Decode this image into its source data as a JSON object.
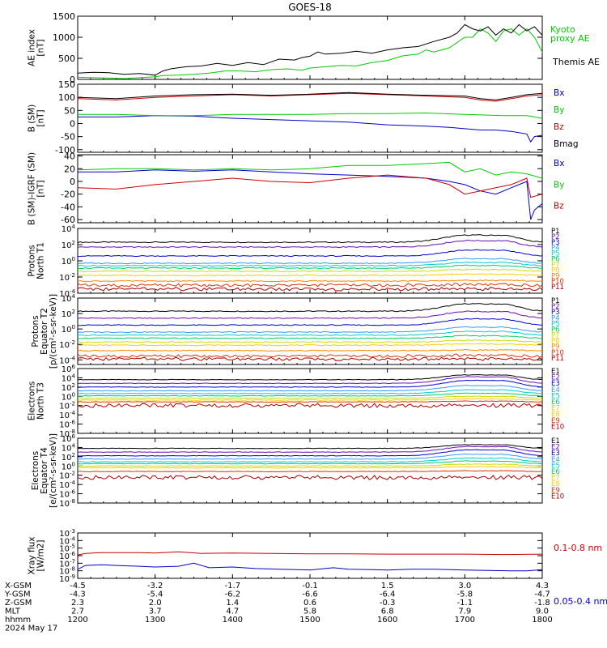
{
  "title": "GOES-18",
  "chart_data": [
    {
      "id": "ae",
      "type": "line",
      "ylabel": [
        "AE index",
        "[nT]"
      ],
      "yscale": "linear",
      "ylim": [
        0,
        1500
      ],
      "yticks": [
        0,
        500,
        1000,
        1500
      ],
      "series": [
        {
          "name": "Kyoto proxy AE",
          "label_lines": [
            "Kyoto",
            "proxy AE"
          ],
          "color": "#00cc00",
          "x": [
            12.0,
            12.2,
            12.4,
            12.6,
            12.8,
            13.0,
            13.1,
            13.3,
            13.5,
            13.7,
            13.9,
            14.1,
            14.3,
            14.5,
            14.7,
            14.9,
            15.0,
            15.2,
            15.4,
            15.6,
            15.8,
            16.0,
            16.2,
            16.4,
            16.5,
            16.6,
            16.8,
            17.0,
            17.1,
            17.2,
            17.3,
            17.4,
            17.5,
            17.6,
            17.7,
            17.8,
            17.9,
            18.0
          ],
          "y": [
            50,
            40,
            30,
            20,
            40,
            60,
            90,
            100,
            120,
            150,
            200,
            200,
            180,
            230,
            250,
            220,
            270,
            300,
            330,
            320,
            400,
            450,
            560,
            600,
            700,
            650,
            750,
            1000,
            1000,
            1200,
            1100,
            900,
            1150,
            1200,
            1050,
            1200,
            1000,
            650
          ]
        },
        {
          "name": "Themis AE",
          "color": "#000000",
          "x": [
            12.0,
            12.2,
            12.4,
            12.6,
            12.8,
            13.0,
            13.1,
            13.2,
            13.4,
            13.6,
            13.8,
            14.0,
            14.2,
            14.4,
            14.6,
            14.8,
            14.9,
            15.0,
            15.1,
            15.2,
            15.4,
            15.6,
            15.8,
            16.0,
            16.2,
            16.4,
            16.6,
            16.8,
            16.9,
            17.0,
            17.1,
            17.2,
            17.3,
            17.4,
            17.5,
            17.6,
            17.7,
            17.8,
            17.9,
            18.0
          ],
          "y": [
            150,
            170,
            160,
            120,
            140,
            100,
            200,
            250,
            300,
            320,
            380,
            330,
            400,
            350,
            480,
            460,
            520,
            550,
            650,
            600,
            620,
            670,
            620,
            700,
            750,
            780,
            900,
            1000,
            1100,
            1300,
            1200,
            1150,
            1250,
            1050,
            1200,
            1100,
            1300,
            1150,
            1250,
            1050
          ]
        }
      ]
    },
    {
      "id": "bsm",
      "type": "line",
      "ylabel": [
        "B (SM)",
        "[nT]"
      ],
      "yscale": "linear",
      "ylim": [
        -110,
        150
      ],
      "yticks": [
        -100,
        -50,
        0,
        50,
        100,
        150
      ],
      "series": [
        {
          "name": "Bx",
          "color": "#0000cc",
          "x": [
            12.0,
            12.5,
            13.0,
            13.5,
            14.0,
            14.5,
            15.0,
            15.5,
            16.0,
            16.5,
            16.8,
            17.0,
            17.2,
            17.4,
            17.6,
            17.8,
            17.85,
            17.9,
            18.0
          ],
          "y": [
            25,
            25,
            30,
            28,
            20,
            15,
            10,
            5,
            -5,
            -10,
            -15,
            -20,
            -25,
            -25,
            -30,
            -40,
            -70,
            -50,
            -45
          ]
        },
        {
          "name": "By",
          "color": "#00cc00",
          "x": [
            12.0,
            12.5,
            13.0,
            13.5,
            14.0,
            14.5,
            15.0,
            15.5,
            16.0,
            16.5,
            17.0,
            17.5,
            17.8,
            18.0
          ],
          "y": [
            35,
            35,
            30,
            30,
            35,
            35,
            35,
            38,
            38,
            40,
            35,
            30,
            30,
            20
          ]
        },
        {
          "name": "Bz",
          "color": "#cc0000",
          "x": [
            12.0,
            12.5,
            13.0,
            13.5,
            14.0,
            14.5,
            15.0,
            15.5,
            16.0,
            16.5,
            17.0,
            17.2,
            17.4,
            17.6,
            17.8,
            18.0
          ],
          "y": [
            95,
            90,
            100,
            105,
            110,
            105,
            110,
            115,
            110,
            105,
            100,
            90,
            85,
            95,
            105,
            110
          ]
        },
        {
          "name": "Bmag",
          "color": "#000000",
          "x": [
            12.0,
            12.5,
            13.0,
            13.5,
            14.0,
            14.5,
            15.0,
            15.5,
            16.0,
            16.5,
            17.0,
            17.2,
            17.4,
            17.6,
            17.8,
            18.0
          ],
          "y": [
            100,
            95,
            105,
            110,
            112,
            108,
            112,
            118,
            112,
            108,
            105,
            95,
            90,
            100,
            110,
            115
          ]
        }
      ]
    },
    {
      "id": "bigrf",
      "type": "line",
      "ylabel": [
        "B (SM)-IGRF (SM)",
        "[nT]"
      ],
      "yscale": "linear",
      "ylim": [
        -65,
        42
      ],
      "yticks": [
        -60,
        -40,
        -20,
        0,
        20,
        40
      ],
      "series": [
        {
          "name": "Bx",
          "color": "#0000cc",
          "x": [
            12.0,
            12.5,
            13.0,
            13.5,
            14.0,
            14.5,
            15.0,
            15.5,
            16.0,
            16.5,
            16.8,
            17.0,
            17.2,
            17.4,
            17.6,
            17.8,
            17.85,
            17.9,
            18.0
          ],
          "y": [
            15,
            15,
            18,
            16,
            18,
            15,
            12,
            10,
            8,
            5,
            0,
            -5,
            -15,
            -20,
            -10,
            0,
            -60,
            -45,
            -35
          ]
        },
        {
          "name": "By",
          "color": "#00cc00",
          "x": [
            12.0,
            12.5,
            13.0,
            13.5,
            14.0,
            14.5,
            15.0,
            15.5,
            16.0,
            16.5,
            16.8,
            17.0,
            17.2,
            17.4,
            17.6,
            17.8,
            18.0
          ],
          "y": [
            18,
            20,
            20,
            18,
            20,
            18,
            20,
            25,
            25,
            28,
            30,
            15,
            20,
            10,
            15,
            12,
            5
          ]
        },
        {
          "name": "Bz",
          "color": "#cc0000",
          "x": [
            12.0,
            12.5,
            13.0,
            13.5,
            14.0,
            14.5,
            15.0,
            15.5,
            16.0,
            16.5,
            16.8,
            17.0,
            17.2,
            17.4,
            17.6,
            17.8,
            17.85,
            18.0
          ],
          "y": [
            -10,
            -12,
            -5,
            0,
            5,
            0,
            -2,
            5,
            10,
            5,
            -5,
            -20,
            -15,
            -10,
            -5,
            5,
            -25,
            -20
          ]
        }
      ]
    },
    {
      "id": "p1",
      "type": "line",
      "ylabel": [
        "Protons",
        "North T1"
      ],
      "yscale": "log",
      "ylim": [
        -4,
        4
      ],
      "yticks": [
        -4,
        -2,
        0,
        2,
        4
      ],
      "channels": [
        {
          "name": "P1",
          "color": "#000000",
          "level": 2.3,
          "bump": 1.1
        },
        {
          "name": "P2",
          "color": "#6a0db0",
          "level": 1.7,
          "bump": 1.0
        },
        {
          "name": "P3",
          "color": "#0000cc",
          "level": 0.6,
          "bump": 0.9
        },
        {
          "name": "P4",
          "color": "#3399ff",
          "level": -0.3,
          "bump": 0.7
        },
        {
          "name": "P5",
          "color": "#00cccc",
          "level": -0.6,
          "bump": 0.5
        },
        {
          "name": "P6",
          "color": "#00cc66",
          "level": -0.9,
          "bump": 0.4
        },
        {
          "name": "P7",
          "color": "#ccdd00",
          "level": -1.3,
          "bump": 0.3
        },
        {
          "name": "P8",
          "color": "#ffcc00",
          "level": -1.8,
          "bump": 0.2
        },
        {
          "name": "P9",
          "color": "#ff8800",
          "level": -2.5,
          "bump": 0.1
        },
        {
          "name": "P10",
          "color": "#dd3300",
          "level": -3.0,
          "bump": 0.1
        },
        {
          "name": "P11",
          "color": "#aa0000",
          "level": -3.5,
          "bump": 0.05
        }
      ]
    },
    {
      "id": "p2",
      "type": "line",
      "ylabel": [
        "Protons",
        "Equator T2",
        "[p/(cm²-s-sr-keV)]"
      ],
      "yscale": "log",
      "ylim": [
        -4.6,
        4
      ],
      "yticks": [
        -4,
        -2,
        0,
        2,
        4
      ],
      "channels": [
        {
          "name": "P1",
          "color": "#000000",
          "level": 2.3,
          "bump": 1.2
        },
        {
          "name": "P2",
          "color": "#6a0db0",
          "level": 1.4,
          "bump": 1.1
        },
        {
          "name": "P3",
          "color": "#0000cc",
          "level": 0.5,
          "bump": 1.0
        },
        {
          "name": "P4",
          "color": "#3399ff",
          "level": -0.4,
          "bump": 0.8
        },
        {
          "name": "P5",
          "color": "#00cccc",
          "level": -0.8,
          "bump": 0.6
        },
        {
          "name": "P6",
          "color": "#00cc66",
          "level": -1.2,
          "bump": 0.4
        },
        {
          "name": "P7",
          "color": "#ccdd00",
          "level": -1.7,
          "bump": 0.3
        },
        {
          "name": "P8",
          "color": "#ffcc00",
          "level": -2.1,
          "bump": 0.2
        },
        {
          "name": "P9",
          "color": "#ff8800",
          "level": -2.8,
          "bump": 0.1
        },
        {
          "name": "P10",
          "color": "#dd3300",
          "level": -3.5,
          "bump": 0.1
        },
        {
          "name": "P11",
          "color": "#aa0000",
          "level": -3.9,
          "bump": 0.05
        }
      ]
    },
    {
      "id": "e1",
      "type": "line",
      "ylabel": [
        "Electrons",
        "North T3"
      ],
      "yscale": "log",
      "ylim": [
        -8,
        6
      ],
      "yticks": [
        -8,
        -6,
        -4,
        -2,
        0,
        2,
        4,
        6
      ],
      "channels": [
        {
          "name": "E1",
          "color": "#000000",
          "level": 3.6,
          "bump": 1.3
        },
        {
          "name": "E2",
          "color": "#6a0db0",
          "level": 2.8,
          "bump": 1.8
        },
        {
          "name": "E3",
          "color": "#0000cc",
          "level": 2.0,
          "bump": 1.8
        },
        {
          "name": "E4",
          "color": "#3399ff",
          "level": 1.2,
          "bump": 1.4
        },
        {
          "name": "E5",
          "color": "#00cccc",
          "level": 0.6,
          "bump": 1.0
        },
        {
          "name": "E6",
          "color": "#00cc66",
          "level": 0.1,
          "bump": 0.7
        },
        {
          "name": "E7",
          "color": "#ccdd00",
          "level": -0.4,
          "bump": 0.5
        },
        {
          "name": "E8",
          "color": "#ffcc00",
          "level": -0.8,
          "bump": 0.3
        },
        {
          "name": "E9",
          "color": "#dd3300",
          "level": -1.2,
          "bump": 0.2
        },
        {
          "name": "E10",
          "color": "#aa0000",
          "level": -2.0,
          "bump": 0.1
        }
      ]
    },
    {
      "id": "e2",
      "type": "line",
      "ylabel": [
        "Electrons",
        "Equator T4",
        "[e/(cm²-s-sr-keV)]"
      ],
      "yscale": "log",
      "ylim": [
        -8,
        6
      ],
      "yticks": [
        -8,
        -6,
        -4,
        -2,
        0,
        2,
        4,
        6
      ],
      "channels": [
        {
          "name": "E1",
          "color": "#000000",
          "level": 3.8,
          "bump": 1.0
        },
        {
          "name": "E2",
          "color": "#6a0db0",
          "level": 3.0,
          "bump": 1.5
        },
        {
          "name": "E3",
          "color": "#0000cc",
          "level": 2.2,
          "bump": 1.6
        },
        {
          "name": "E4",
          "color": "#3399ff",
          "level": 1.5,
          "bump": 1.3
        },
        {
          "name": "E5",
          "color": "#00cccc",
          "level": 0.9,
          "bump": 1.0
        },
        {
          "name": "E6",
          "color": "#00cc66",
          "level": 0.5,
          "bump": 0.7
        },
        {
          "name": "E7",
          "color": "#ccdd00",
          "level": 0.0,
          "bump": 0.5
        },
        {
          "name": "E8",
          "color": "#ffcc00",
          "level": -0.4,
          "bump": 0.3
        },
        {
          "name": "E9",
          "color": "#dd3300",
          "level": -1.2,
          "bump": 0.2
        },
        {
          "name": "E10",
          "color": "#aa0000",
          "level": -2.5,
          "bump": 0.1
        }
      ]
    },
    {
      "id": "xray",
      "type": "line",
      "ylabel": [
        "Xray flux",
        "[W/m2]"
      ],
      "yscale": "log",
      "ylim": [
        -9,
        -3
      ],
      "yticks": [
        -9,
        -8,
        -7,
        -6,
        -5,
        -4,
        -3
      ],
      "series": [
        {
          "name": "0.1-0.8 nm",
          "color": "#cc0000",
          "x": [
            12.0,
            12.1,
            12.3,
            12.5,
            12.8,
            13.0,
            13.3,
            13.6,
            14.0,
            14.5,
            15.0,
            15.5,
            16.0,
            16.5,
            17.0,
            17.5,
            18.0
          ],
          "y": [
            -5.9,
            -5.7,
            -5.6,
            -5.6,
            -5.6,
            -5.65,
            -5.5,
            -5.7,
            -5.65,
            -5.7,
            -5.75,
            -5.75,
            -5.8,
            -5.8,
            -5.8,
            -5.85,
            -5.8
          ]
        },
        {
          "name": "0.05-0.4 nm",
          "color": "#0000cc",
          "x": [
            12.0,
            12.1,
            12.3,
            12.5,
            12.8,
            13.0,
            13.3,
            13.5,
            13.7,
            14.0,
            14.3,
            14.6,
            15.0,
            15.3,
            15.5,
            15.8,
            16.0,
            16.3,
            16.6,
            17.0,
            17.3,
            17.6,
            17.8,
            18.0
          ],
          "y": [
            -7.8,
            -7.3,
            -7.2,
            -7.3,
            -7.4,
            -7.5,
            -7.4,
            -7.0,
            -7.6,
            -7.5,
            -7.7,
            -7.8,
            -7.9,
            -7.6,
            -7.8,
            -7.85,
            -7.9,
            -7.8,
            -7.8,
            -7.9,
            -7.95,
            -8.0,
            -8.0,
            -7.85
          ]
        }
      ]
    }
  ],
  "xaxis": {
    "rows": [
      {
        "label": "X-GSM",
        "values": [
          "-4.5",
          "-3.2",
          "-1.7",
          "-0.1",
          "1.5",
          "3.0",
          "4.3"
        ]
      },
      {
        "label": "Y-GSM",
        "values": [
          "-4.3",
          "-5.4",
          "-6.2",
          "-6.6",
          "-6.4",
          "-5.8",
          "-4.7"
        ]
      },
      {
        "label": "Z-GSM",
        "values": [
          "2.3",
          "2.0",
          "1.4",
          "0.6",
          "-0.3",
          "-1.1",
          "-1.8"
        ]
      },
      {
        "label": "MLT",
        "values": [
          "2.7",
          "3.7",
          "4.7",
          "5.8",
          "6.8",
          "7.9",
          "9.0"
        ]
      },
      {
        "label": "hhmm",
        "values": [
          "1200",
          "1300",
          "1400",
          "1500",
          "1600",
          "1700",
          "1800"
        ]
      }
    ],
    "date": "2024 May 17",
    "x_hours": [
      12,
      13,
      14,
      15,
      16,
      17,
      18
    ]
  }
}
